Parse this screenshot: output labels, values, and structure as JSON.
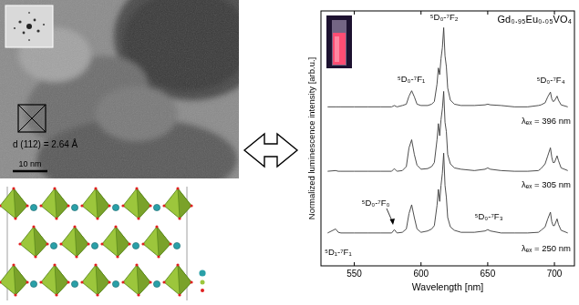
{
  "tem_image": {
    "plane_label": "d (112) = 2.64 Å",
    "scale_bar": "10 nm"
  },
  "chart_data": {
    "type": "line",
    "title": "Gd₀.₉₅Eu₀.₀₅VO₄",
    "x_label": "Wavelength [nm]",
    "y_label": "Normalized luminescence intensity [arb.u.]",
    "x": [
      530,
      536,
      538,
      540,
      550,
      560,
      570,
      578,
      580,
      582,
      586,
      589,
      591,
      593,
      595,
      597,
      600,
      605,
      608,
      610,
      612,
      613,
      614,
      615,
      616,
      617,
      618,
      619,
      620,
      622,
      625,
      630,
      640,
      648,
      650,
      652,
      660,
      670,
      680,
      688,
      690,
      693,
      695,
      697,
      698,
      699,
      700,
      702,
      703,
      705,
      710
    ],
    "series": [
      {
        "name": "λₑₓ = 396 nm",
        "color": "#3a3a3a",
        "values": [
          1.97,
          1.97,
          1.97,
          1.97,
          1.97,
          1.97,
          1.97,
          1.97,
          1.99,
          1.97,
          1.99,
          2.01,
          2.13,
          2.21,
          2.12,
          2.01,
          1.99,
          1.99,
          2.01,
          2.05,
          2.31,
          2.55,
          2.45,
          2.69,
          2.85,
          3.15,
          2.73,
          2.57,
          2.25,
          2.07,
          2.01,
          1.99,
          1.99,
          2.0,
          2.01,
          2.0,
          1.99,
          1.97,
          1.97,
          1.99,
          2.0,
          2.03,
          2.12,
          2.19,
          2.09,
          2.05,
          2.06,
          2.13,
          2.07,
          2.0,
          1.97
        ]
      },
      {
        "name": "λₑₓ = 305 nm",
        "color": "#3a3a3a",
        "values": [
          1.01,
          1.02,
          1.01,
          1.01,
          1.01,
          1.01,
          1.01,
          1.01,
          1.05,
          1.01,
          1.02,
          1.08,
          1.36,
          1.48,
          1.26,
          1.1,
          1.04,
          1.05,
          1.08,
          1.14,
          1.48,
          1.72,
          1.54,
          1.78,
          1.94,
          2.2,
          1.74,
          1.6,
          1.26,
          1.12,
          1.06,
          1.04,
          1.02,
          1.04,
          1.06,
          1.04,
          1.02,
          1.01,
          1.01,
          1.02,
          1.05,
          1.12,
          1.24,
          1.36,
          1.22,
          1.14,
          1.14,
          1.24,
          1.17,
          1.06,
          1.02
        ]
      },
      {
        "name": "λₑₓ = 250 nm",
        "color": "#3a3a3a",
        "values": [
          0.09,
          0.15,
          0.1,
          0.09,
          0.09,
          0.09,
          0.09,
          0.09,
          0.14,
          0.09,
          0.1,
          0.15,
          0.38,
          0.51,
          0.32,
          0.15,
          0.1,
          0.12,
          0.15,
          0.2,
          0.5,
          0.74,
          0.56,
          0.8,
          0.98,
          1.28,
          0.8,
          0.62,
          0.32,
          0.18,
          0.13,
          0.1,
          0.1,
          0.12,
          0.14,
          0.12,
          0.09,
          0.09,
          0.09,
          0.1,
          0.13,
          0.18,
          0.3,
          0.4,
          0.26,
          0.2,
          0.2,
          0.3,
          0.22,
          0.13,
          0.09
        ]
      }
    ],
    "xlim": [
      525,
      715
    ],
    "xticks": [
      550,
      600,
      650,
      700
    ],
    "ylim": [
      -0.4,
      3.4
    ],
    "tick_labels": "x",
    "grid": false,
    "annotations": [
      "⁵D₀-⁷F₂",
      "⁵D₀-⁷F₁",
      "⁵D₀-⁷F₄",
      "⁵D₁-⁷F₁",
      "⁵D₀-⁷F₀",
      "⁵D₀-⁷F₃"
    ]
  }
}
